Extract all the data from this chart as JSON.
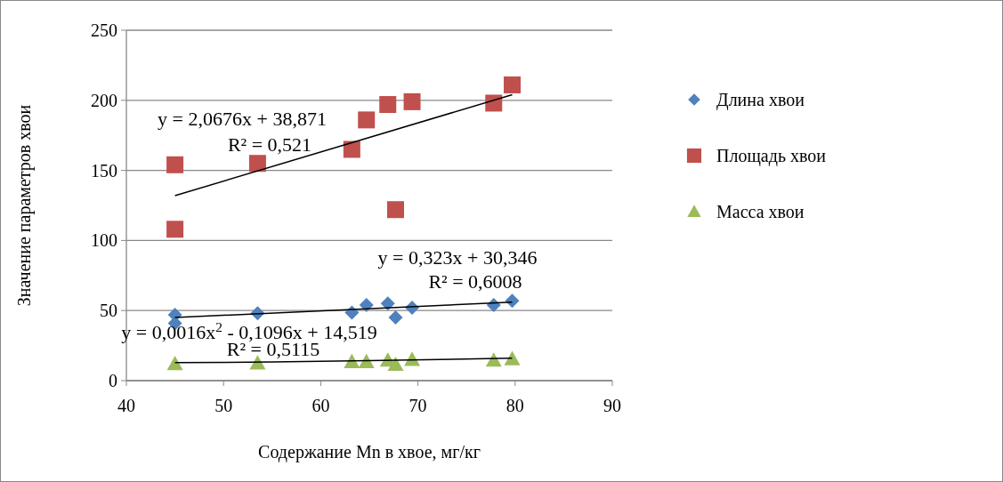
{
  "chart_data": {
    "type": "scatter",
    "xlabel": "Содержание Mn в хвое, мг/кг",
    "ylabel": "Значение параметров хвои",
    "xlim": [
      40,
      90
    ],
    "xticks": [
      40,
      50,
      60,
      70,
      80,
      90
    ],
    "ylim": [
      0,
      250
    ],
    "yticks": [
      0,
      50,
      100,
      150,
      200,
      250
    ],
    "grid": "y",
    "legend": "right",
    "x": [
      45,
      45,
      53.5,
      63.2,
      64.7,
      66.9,
      67.7,
      69.4,
      77.8,
      79.7
    ],
    "series": [
      {
        "name": "Длина хвои",
        "color": "#4f81bd",
        "marker": "diamond",
        "values": [
          47,
          41,
          48,
          48.5,
          54,
          55,
          45,
          52,
          54,
          57
        ]
      },
      {
        "name": "Площадь хвои",
        "color": "#c0504d",
        "marker": "square",
        "values": [
          154,
          108,
          155,
          165,
          186,
          197,
          122,
          199,
          198,
          211
        ]
      },
      {
        "name": "Масса хвои",
        "color": "#9bbb59",
        "marker": "triangle",
        "values": [
          12,
          null,
          12.5,
          13.5,
          13.5,
          14.5,
          11.5,
          15,
          14.5,
          15.5
        ]
      },
      {
        "type": "line",
        "color": "#000000",
        "marker": "none",
        "x": [
          45,
          79.7
        ],
        "values": [
          132,
          204
        ]
      },
      {
        "type": "line",
        "color": "#000000",
        "marker": "none",
        "x": [
          45,
          79.7
        ],
        "values": [
          45,
          56
        ]
      },
      {
        "type": "line",
        "color": "#000000",
        "marker": "none",
        "x": [
          45,
          55,
          65,
          79.7
        ],
        "values": [
          12.8,
          13.3,
          14.2,
          16
        ]
      }
    ],
    "annotations": [
      "y = 2,0676x + 38,871",
      "R² = 0,521",
      "y = 0,323x + 30,346",
      "R² = 0,6008",
      "y = 0,0016x$^{2}$ - 0,1096x + 14,519",
      "R² = 0,5115"
    ]
  }
}
